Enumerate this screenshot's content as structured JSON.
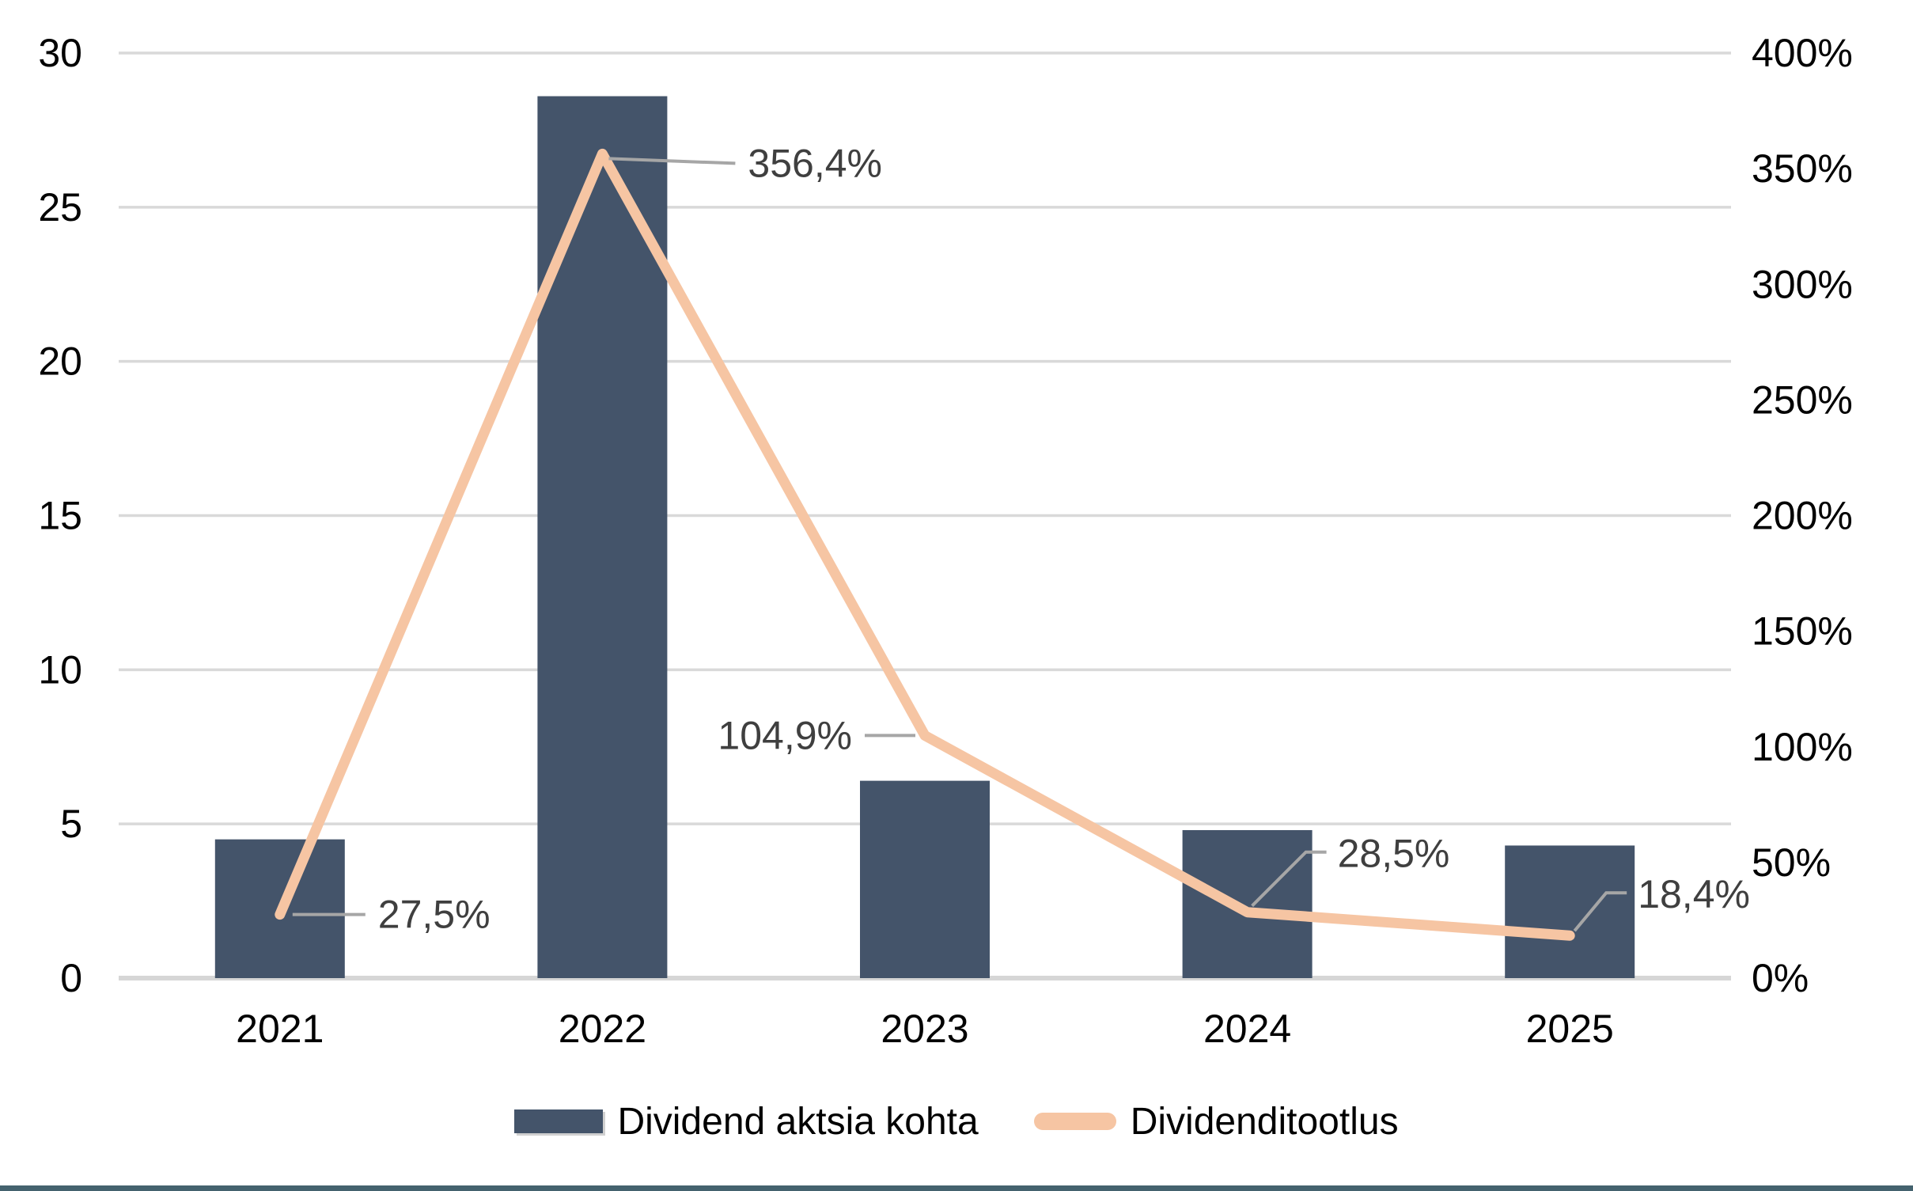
{
  "page": {
    "background": "#ffffff",
    "footer_bar_color": "#44626e"
  },
  "chart_data": {
    "type": "combo_bar_line",
    "title": "",
    "categories": [
      "2021",
      "2022",
      "2023",
      "2024",
      "2025"
    ],
    "series": [
      {
        "name": "Dividend aktsia kohta",
        "chart_type": "bar",
        "axis": "left",
        "color": "#44546a",
        "values": [
          4.5,
          28.6,
          6.4,
          4.8,
          4.3
        ]
      },
      {
        "name": "Dividenditootlus",
        "chart_type": "line",
        "axis": "right",
        "color": "#f6c5a3",
        "values_percent": [
          27.5,
          356.4,
          104.9,
          28.5,
          18.4
        ],
        "point_labels": [
          "27,5%",
          "356,4%",
          "104,9%",
          "28,5%",
          "18,4%"
        ]
      }
    ],
    "left_axis": {
      "min": 0,
      "max": 30,
      "step": 5,
      "ticks": [
        "0",
        "5",
        "10",
        "15",
        "20",
        "25",
        "30"
      ]
    },
    "right_axis": {
      "min": 0,
      "max": 400,
      "step": 50,
      "ticks": [
        "0%",
        "50%",
        "100%",
        "150%",
        "200%",
        "250%",
        "300%",
        "350%",
        "400%"
      ]
    },
    "grid": "horizontal",
    "legend_position": "bottom",
    "colors": {
      "grid_line": "#d9d9d9",
      "axis_line": "#d6d6d6",
      "data_label": "#3f3f3f",
      "leader_line": "#a6a6a6",
      "tick_label": "#000000"
    }
  }
}
